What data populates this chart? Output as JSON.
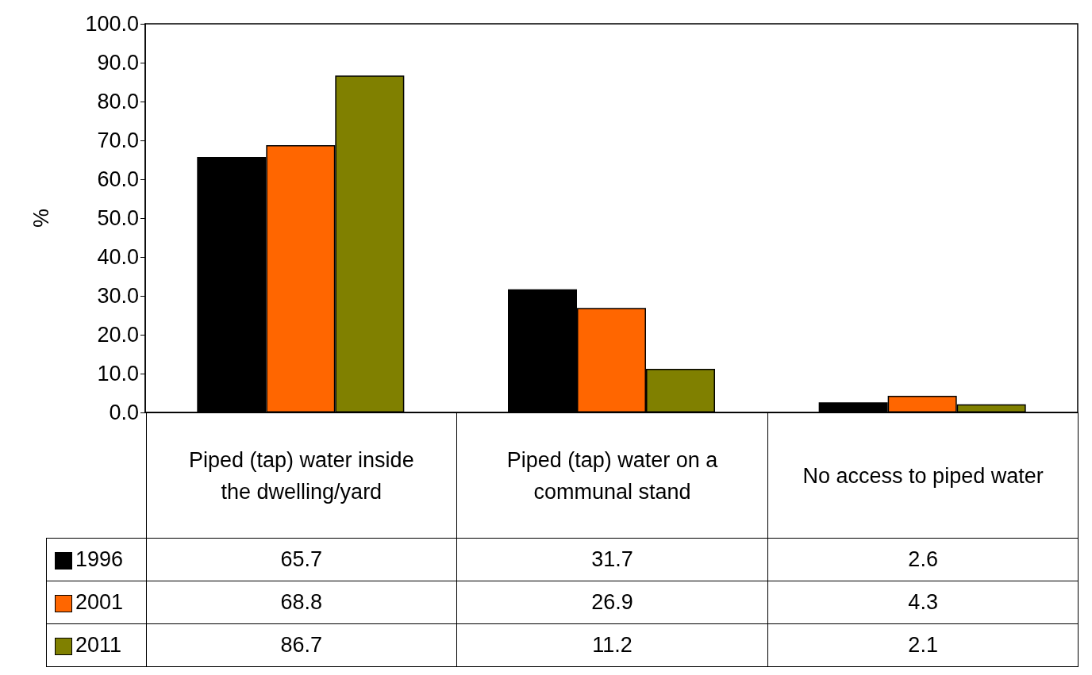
{
  "chart_data": {
    "type": "bar",
    "ylabel": "%",
    "categories": [
      "Piped (tap) water inside the dwelling/yard",
      "Piped (tap) water on a communal stand",
      "No access to piped water"
    ],
    "series": [
      {
        "name": "1996",
        "color": "#000000",
        "values": [
          65.7,
          31.7,
          2.6
        ]
      },
      {
        "name": "2001",
        "color": "#ff6600",
        "values": [
          68.8,
          26.9,
          4.3
        ]
      },
      {
        "name": "2011",
        "color": "#808000",
        "values": [
          86.7,
          11.2,
          2.1
        ]
      }
    ],
    "ylim": [
      0,
      100
    ],
    "yticks": [
      {
        "value": 0,
        "label": "0.0"
      },
      {
        "value": 10,
        "label": "10.0"
      },
      {
        "value": 20,
        "label": "20.0"
      },
      {
        "value": 30,
        "label": "30.0"
      },
      {
        "value": 40,
        "label": "40.0"
      },
      {
        "value": 50,
        "label": "50.0"
      },
      {
        "value": 60,
        "label": "60.0"
      },
      {
        "value": 70,
        "label": "70.0"
      },
      {
        "value": 80,
        "label": "80.0"
      },
      {
        "value": 90,
        "label": "90.0"
      },
      {
        "value": 100,
        "label": "100.0"
      }
    ],
    "grid": false,
    "legend": "bottom",
    "data_labels": true
  }
}
